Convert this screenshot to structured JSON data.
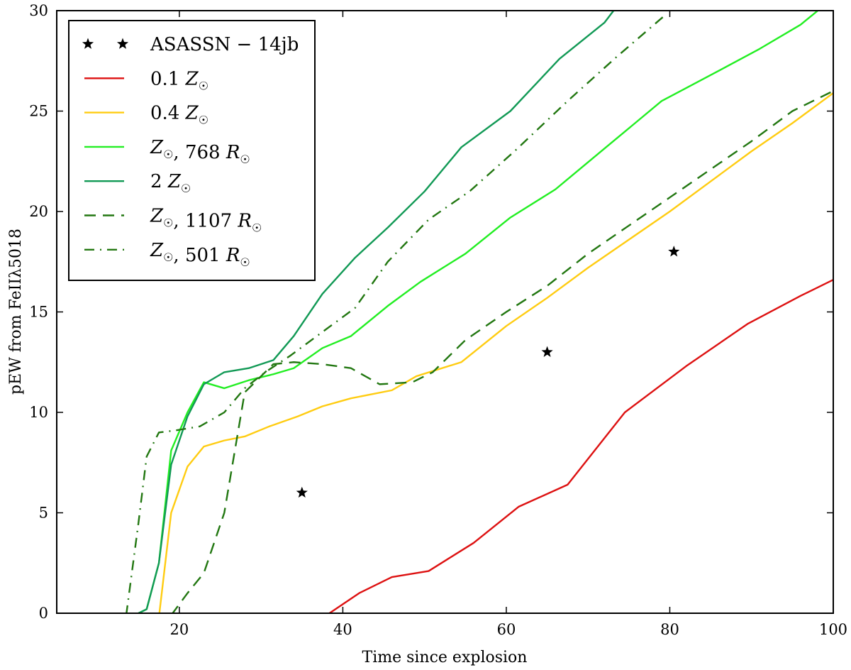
{
  "chart_data": {
    "type": "line",
    "xlabel": "Time since explosion",
    "ylabel": "pEW from FeIIλ5018",
    "xlim": [
      5,
      100
    ],
    "ylim": [
      0,
      30
    ],
    "x_ticks": [
      20,
      40,
      60,
      80,
      100
    ],
    "y_ticks": [
      0,
      5,
      10,
      15,
      20,
      25,
      30
    ],
    "legend_position": "top-left",
    "series": [
      {
        "name": "ASASSN − 14jb",
        "kind": "scatter",
        "color": "#000000",
        "marker": "star",
        "points": [
          [
            35,
            6
          ],
          [
            65,
            13
          ],
          [
            80.5,
            18
          ]
        ],
        "legend_parts": [
          {
            "t": "ASASSN − 14jb"
          }
        ]
      },
      {
        "name": "0.1 Z☉",
        "kind": "line",
        "color": "#dd1111",
        "dash": "solid",
        "points": [
          [
            38,
            -0.1
          ],
          [
            42,
            1.0
          ],
          [
            46,
            1.8
          ],
          [
            50.5,
            2.1
          ],
          [
            56,
            3.5
          ],
          [
            61.5,
            5.3
          ],
          [
            67.5,
            6.4
          ],
          [
            74.5,
            10.0
          ],
          [
            82,
            12.3
          ],
          [
            89.5,
            14.4
          ],
          [
            96,
            15.8
          ],
          [
            100,
            16.6
          ]
        ],
        "legend_parts": [
          {
            "t": "0.1 "
          },
          {
            "t": "Z",
            "it": true
          },
          {
            "t": "☉",
            "sub": true
          }
        ]
      },
      {
        "name": "0.4 Z☉",
        "kind": "line",
        "color": "#ffcc11",
        "dash": "solid",
        "points": [
          [
            17.5,
            -0.2
          ],
          [
            19,
            5.0
          ],
          [
            21,
            7.3
          ],
          [
            23,
            8.3
          ],
          [
            25.5,
            8.6
          ],
          [
            28,
            8.8
          ],
          [
            31,
            9.3
          ],
          [
            34.5,
            9.8
          ],
          [
            37.5,
            10.3
          ],
          [
            41,
            10.7
          ],
          [
            46,
            11.1
          ],
          [
            49,
            11.8
          ],
          [
            54.5,
            12.5
          ],
          [
            60,
            14.3
          ],
          [
            65,
            15.7
          ],
          [
            70,
            17.2
          ],
          [
            75,
            18.6
          ],
          [
            80,
            20.0
          ],
          [
            85,
            21.5
          ],
          [
            90,
            23.0
          ],
          [
            95,
            24.4
          ],
          [
            100,
            25.9
          ]
        ],
        "legend_parts": [
          {
            "t": "0.4 "
          },
          {
            "t": "Z",
            "it": true
          },
          {
            "t": "☉",
            "sub": true
          }
        ]
      },
      {
        "name": "Z☉, 768 R☉",
        "kind": "line",
        "color": "#22ee22",
        "dash": "solid",
        "points": [
          [
            14.5,
            -0.1
          ],
          [
            16,
            0.2
          ],
          [
            17.5,
            2.5
          ],
          [
            19,
            8.1
          ],
          [
            21,
            10.0
          ],
          [
            23,
            11.5
          ],
          [
            25.5,
            11.2
          ],
          [
            28.5,
            11.6
          ],
          [
            31.5,
            11.9
          ],
          [
            34,
            12.2
          ],
          [
            37.5,
            13.2
          ],
          [
            41,
            13.8
          ],
          [
            45.5,
            15.3
          ],
          [
            49.5,
            16.5
          ],
          [
            55,
            17.9
          ],
          [
            60.5,
            19.7
          ],
          [
            66,
            21.1
          ],
          [
            72.5,
            23.3
          ],
          [
            79,
            25.5
          ],
          [
            85.5,
            26.9
          ],
          [
            91,
            28.1
          ],
          [
            96,
            29.3
          ],
          [
            99,
            30.3
          ]
        ],
        "legend_parts": [
          {
            "t": "Z",
            "it": true
          },
          {
            "t": "☉",
            "sub": true
          },
          {
            "t": ", 768 "
          },
          {
            "t": "R",
            "it": true
          },
          {
            "t": "☉",
            "sub": true
          }
        ]
      },
      {
        "name": "2 Z☉",
        "kind": "line",
        "color": "#119955",
        "dash": "solid",
        "points": [
          [
            14.5,
            -0.1
          ],
          [
            16,
            0.2
          ],
          [
            17.5,
            2.5
          ],
          [
            19,
            7.4
          ],
          [
            21,
            9.8
          ],
          [
            23,
            11.4
          ],
          [
            25.5,
            12.0
          ],
          [
            28.5,
            12.2
          ],
          [
            31.5,
            12.6
          ],
          [
            34,
            13.8
          ],
          [
            37.5,
            15.9
          ],
          [
            41.5,
            17.7
          ],
          [
            45.5,
            19.2
          ],
          [
            50,
            21.0
          ],
          [
            54.5,
            23.2
          ],
          [
            60.5,
            25.0
          ],
          [
            66.5,
            27.6
          ],
          [
            72,
            29.4
          ],
          [
            73.5,
            30.2
          ]
        ],
        "legend_parts": [
          {
            "t": "2 "
          },
          {
            "t": "Z",
            "it": true
          },
          {
            "t": "☉",
            "sub": true
          }
        ]
      },
      {
        "name": "Z☉, 1107 R☉",
        "kind": "line",
        "color": "#227711",
        "dash": "dashed",
        "points": [
          [
            19,
            -0.1
          ],
          [
            21,
            1.0
          ],
          [
            23,
            2.0
          ],
          [
            25.5,
            5.0
          ],
          [
            28,
            11.0
          ],
          [
            31.5,
            12.4
          ],
          [
            34,
            12.5
          ],
          [
            37.5,
            12.4
          ],
          [
            41,
            12.2
          ],
          [
            44.5,
            11.4
          ],
          [
            48.5,
            11.5
          ],
          [
            51,
            12.0
          ],
          [
            55,
            13.6
          ],
          [
            60,
            15.0
          ],
          [
            65,
            16.3
          ],
          [
            70,
            17.9
          ],
          [
            75,
            19.3
          ],
          [
            80,
            20.7
          ],
          [
            85,
            22.1
          ],
          [
            90,
            23.5
          ],
          [
            95,
            25.0
          ],
          [
            100,
            26.0
          ]
        ],
        "legend_parts": [
          {
            "t": "Z",
            "it": true
          },
          {
            "t": "☉",
            "sub": true
          },
          {
            "t": ", 1107 "
          },
          {
            "t": "R",
            "it": true
          },
          {
            "t": "☉",
            "sub": true
          }
        ]
      },
      {
        "name": "Z☉, 501 R☉",
        "kind": "line",
        "color": "#227711",
        "dash": "dashdot",
        "points": [
          [
            13.5,
            -0.1
          ],
          [
            15,
            4.5
          ],
          [
            16,
            7.8
          ],
          [
            17.5,
            9.0
          ],
          [
            19.5,
            9.1
          ],
          [
            22.5,
            9.3
          ],
          [
            25.5,
            10.0
          ],
          [
            28,
            11.2
          ],
          [
            30.5,
            12.0
          ],
          [
            33.5,
            12.8
          ],
          [
            37.5,
            14.0
          ],
          [
            41.5,
            15.2
          ],
          [
            45.5,
            17.5
          ],
          [
            50.5,
            19.6
          ],
          [
            55.5,
            21.0
          ],
          [
            61,
            23.0
          ],
          [
            67.5,
            25.5
          ],
          [
            73.5,
            27.7
          ],
          [
            79.5,
            29.8
          ]
        ],
        "legend_parts": [
          {
            "t": "Z",
            "it": true
          },
          {
            "t": "☉",
            "sub": true
          },
          {
            "t": ", 501 "
          },
          {
            "t": "R",
            "it": true
          },
          {
            "t": "☉",
            "sub": true
          }
        ]
      }
    ]
  }
}
